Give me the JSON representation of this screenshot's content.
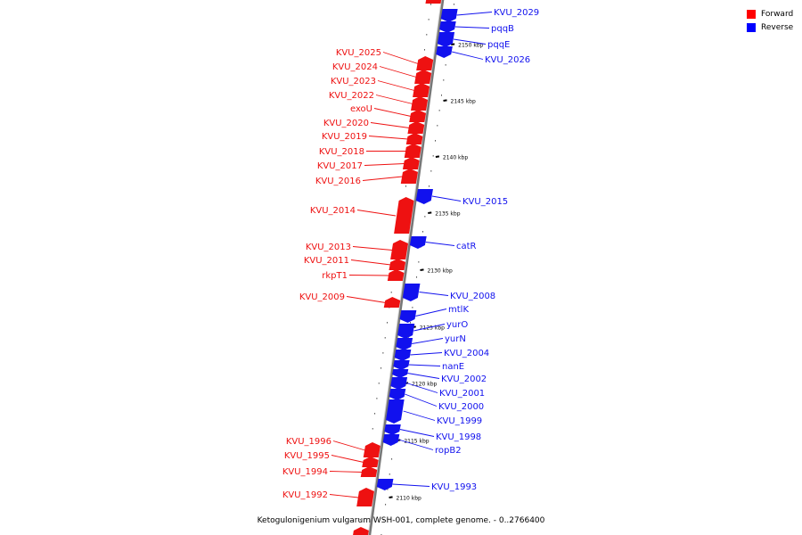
{
  "caption": "Ketogulonigenium vulgarum WSH-001, complete genome. - 0..2766400",
  "legend": [
    {
      "label": "Forward",
      "color": "#ff0000"
    },
    {
      "label": "Reverse",
      "color": "#0000ff"
    }
  ],
  "colors": {
    "forward": "#ee1111",
    "reverse": "#1111ee",
    "backbone": "#888888"
  },
  "kbp_ticks": [
    "2150 kbp",
    "2145 kbp",
    "2140 kbp",
    "2135 kbp",
    "2130 kbp",
    "2125 kbp",
    "2120 kbp",
    "2115 kbp",
    "2110 kbp"
  ],
  "forward_genes": [
    "KVU_2025",
    "KVU_2024",
    "KVU_2023",
    "KVU_2022",
    "exoU",
    "KVU_2020",
    "KVU_2019",
    "KVU_2018",
    "KVU_2017",
    "KVU_2016",
    "KVU_2014",
    "KVU_2013",
    "KVU_2011",
    "rkpT1",
    "KVU_2009",
    "KVU_1996",
    "KVU_1995",
    "KVU_1994",
    "KVU_1992"
  ],
  "reverse_genes": [
    "KVU_2029",
    "pqqB",
    "pqqE",
    "KVU_2026",
    "KVU_2015",
    "catR",
    "KVU_2008",
    "mtlK",
    "yurO",
    "yurN",
    "KVU_2004",
    "nanE",
    "KVU_2002",
    "KVU_2001",
    "KVU_2000",
    "KVU_1999",
    "KVU_1998",
    "ropB2",
    "KVU_1993"
  ]
}
